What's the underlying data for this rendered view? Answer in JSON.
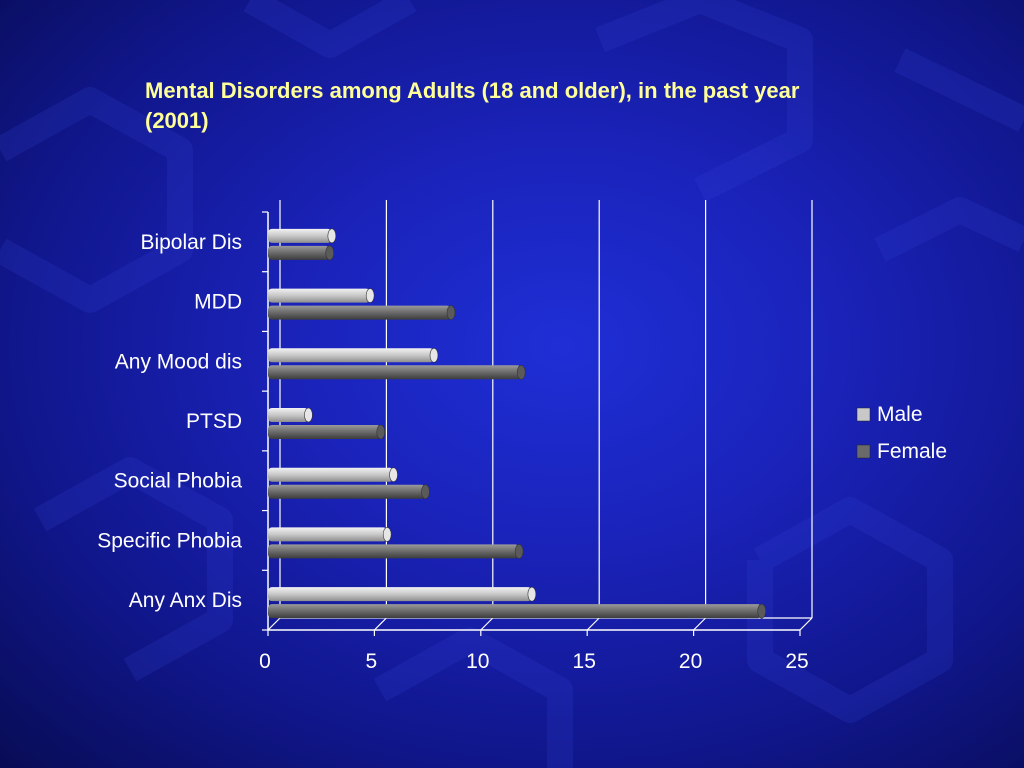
{
  "title": "Mental Disorders among Adults (18 and older), in the past year (2001)",
  "colors": {
    "background": "#1a22b8",
    "title_text": "#ffff99",
    "male_bar": "#c8c8c8",
    "female_bar": "#6a6a6a",
    "gridline": "#ffffff",
    "text": "#ffffff"
  },
  "chart_data": {
    "type": "bar",
    "orientation": "horizontal",
    "title": "Mental Disorders among Adults (18 and older), in the past year (2001)",
    "xlabel": "",
    "ylabel": "",
    "categories": [
      "Bipolar Dis",
      "MDD",
      "Any Mood dis",
      "PTSD",
      "Social Phobia",
      "Specific Phobia",
      "Any Anx Dis"
    ],
    "series": [
      {
        "name": "Male",
        "values": [
          3.0,
          4.8,
          7.8,
          1.9,
          5.9,
          5.6,
          12.4
        ]
      },
      {
        "name": "Female",
        "values": [
          2.9,
          8.6,
          11.9,
          5.3,
          7.4,
          11.8,
          23.2
        ]
      }
    ],
    "xlim": [
      0,
      25
    ],
    "xticks": [
      "0",
      "5",
      "10",
      "15",
      "20",
      "25"
    ],
    "grid": true,
    "legend": "right"
  }
}
